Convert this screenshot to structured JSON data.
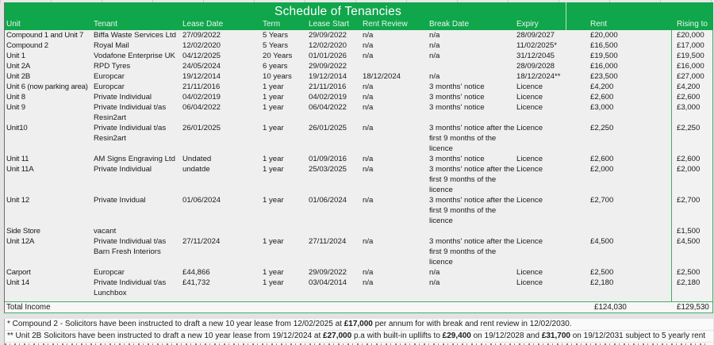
{
  "title": "Schedule of Tenancies",
  "columns": [
    "Unit",
    "Tenant",
    "Lease Date",
    "Term",
    "Lease Start",
    "Rent Review",
    "Break Date",
    "Expiry",
    "Rent",
    "Rising to"
  ],
  "rows": [
    {
      "unit": "Compound 1 and Unit 7",
      "tenant": "Biffa Waste Services Ltd",
      "lease_date": "27/09/2022",
      "term": "5 Years",
      "lease_start": "29/09/2022",
      "rent_review": "n/a",
      "break_date": "n/a",
      "expiry": "28/09/2027",
      "rent": "£20,000",
      "rising_to": "£20,000"
    },
    {
      "unit": "Compound 2",
      "tenant": "Royal Mail",
      "lease_date": "12/02/2020",
      "term": "5 Years",
      "lease_start": "12/02/2020",
      "rent_review": "n/a",
      "break_date": "n/a",
      "expiry": "11/02/2025*",
      "rent": "£16,500",
      "rising_to": "£17,000"
    },
    {
      "unit": "Unit 1",
      "tenant": "Vodafone Enterprise UK",
      "lease_date": "04/12/2025",
      "term": "20 Years",
      "lease_start": "01/01/2026",
      "rent_review": "n/a",
      "break_date": "n/a",
      "expiry": "31/12/2045",
      "rent": "£19,500",
      "rising_to": "£19,500"
    },
    {
      "unit": "Unit 2A",
      "tenant": "RPD Tyres",
      "lease_date": "24/05/2024",
      "term": "6 years",
      "lease_start": "29/09/2022",
      "rent_review": "",
      "break_date": "",
      "expiry": "28/09/2028",
      "rent": "£16,000",
      "rising_to": "£16,000"
    },
    {
      "unit": "Unit 2B",
      "tenant": "Europcar",
      "lease_date": "19/12/2014",
      "term": "10 years",
      "lease_start": "19/12/2014",
      "rent_review": "18/12/2024",
      "break_date": "n/a",
      "expiry": "18/12/2024**",
      "rent": "£23,500",
      "rising_to": "£27,000"
    },
    {
      "unit": "Unit 6 (now parking area)",
      "tenant": "Europcar",
      "lease_date": "21/11/2016",
      "term": "1 year",
      "lease_start": "21/11/2016",
      "rent_review": "n/a",
      "break_date": "3 months' notice",
      "expiry": "Licence",
      "rent": "£4,200",
      "rising_to": "£4,200"
    },
    {
      "unit": "Unit 8",
      "tenant": "Private Individual",
      "lease_date": "04/02/2019",
      "term": "1 year",
      "lease_start": "04/02/2019",
      "rent_review": "n/a",
      "break_date": "3 months' notice",
      "expiry": "Licence",
      "rent": "£2,600",
      "rising_to": "£2,600"
    },
    {
      "unit": "Unit 9",
      "tenant": "Private Individual t/as Resin2art",
      "lease_date": "06/04/2022",
      "term": "1 year",
      "lease_start": "06/04/2022",
      "rent_review": "n/a",
      "break_date": "3 months' notice",
      "expiry": "Licence",
      "rent": "£3,000",
      "rising_to": "£3,000"
    },
    {
      "unit": "Unit10",
      "tenant": "Private Individual t/as Resin2art",
      "lease_date": "26/01/2025",
      "term": "1 year",
      "lease_start": "26/01/2025",
      "rent_review": "n/a",
      "break_date": "3 months' notice after the first 9 months of the licence",
      "expiry": "Licence",
      "rent": "£2,250",
      "rising_to": "£2,250"
    },
    {
      "unit": "Unit 11",
      "tenant": "AM Signs Engraving Ltd",
      "lease_date": "Undated",
      "term": "1 year",
      "lease_start": "01/09/2016",
      "rent_review": "n/a",
      "break_date": "3 months' notice",
      "expiry": "Licence",
      "rent": "£2,600",
      "rising_to": "£2,600"
    },
    {
      "unit": "Unit 11A",
      "tenant": "Private Individual",
      "lease_date": "undatde",
      "term": "1 year",
      "lease_start": "25/03/2025",
      "rent_review": "n/a",
      "break_date": "3 months' notice after the first 9 months of the licence",
      "expiry": "Licence",
      "rent": "£2,000",
      "rising_to": "£2,000"
    },
    {
      "unit": "Unit 12",
      "tenant": "Private Invidual",
      "lease_date": "01/06/2024",
      "term": "1 year",
      "lease_start": "01/06/2024",
      "rent_review": "n/a",
      "break_date": "3 months' notice after the first 9 months of the licence",
      "expiry": "Licence",
      "rent": "£2,700",
      "rising_to": "£2,700"
    },
    {
      "unit": "Side Store",
      "tenant": "vacant",
      "lease_date": "",
      "term": "",
      "lease_start": "",
      "rent_review": "",
      "break_date": "",
      "expiry": "",
      "rent": "",
      "rising_to": "£1,500"
    },
    {
      "unit": "Unit 12A",
      "tenant": "Private Individual t/as Barn Fresh Interiors",
      "lease_date": "27/11/2024",
      "term": "1 year",
      "lease_start": "27/11/2024",
      "rent_review": "n/a",
      "break_date": "3 months' notice after the first 9 months of the licence",
      "expiry": "Licence",
      "rent": "£4,500",
      "rising_to": "£4,500"
    },
    {
      "unit": "Carport",
      "tenant": "Europcar",
      "lease_date": "£44,866",
      "term": "1 year",
      "lease_start": "29/09/2022",
      "rent_review": "n/a",
      "break_date": "n/a",
      "expiry": "Licence",
      "rent": "£2,500",
      "rising_to": "£2,500"
    },
    {
      "unit": "Unit 14",
      "tenant": "Private Individual t/as Lunchbox",
      "lease_date": "£41,732",
      "term": "1 year",
      "lease_start": "03/04/2014",
      "rent_review": "n/a",
      "break_date": "n/a",
      "expiry": "Licence",
      "rent": "£2,180",
      "rising_to": "£2,180"
    }
  ],
  "total": {
    "label": "Total Income",
    "rent": "£124,030",
    "rising_to": "£129,530"
  },
  "footnotes": [
    {
      "segments": [
        {
          "text": "* Compound 2 - Solicitors have been instructed to draft a new 10 year lease from 12/02/2025  at ",
          "bold": false
        },
        {
          "text": "£17,000",
          "bold": true
        },
        {
          "text": " per annum for with break and rent review in 12/02/2030.",
          "bold": false
        }
      ]
    },
    {
      "segments": [
        {
          "text": "** Unit 2B Solicitors have been instructed to draft a new 10 year lease from 19/12/2024  at ",
          "bold": false
        },
        {
          "text": "£27,000",
          "bold": true
        },
        {
          "text": " p.a with built-in upllifts to ",
          "bold": false
        },
        {
          "text": "£29,400",
          "bold": true
        },
        {
          "text": " on 19/12/2028 and ",
          "bold": false
        },
        {
          "text": "£31,700",
          "bold": true
        },
        {
          "text": " on 19/12/2031 subject to 5 yearly rent",
          "bold": false
        }
      ]
    }
  ],
  "colors": {
    "header_green": "#10A64B",
    "table_border_green": "#3FAE68",
    "body_background": "#EFEFEF"
  }
}
